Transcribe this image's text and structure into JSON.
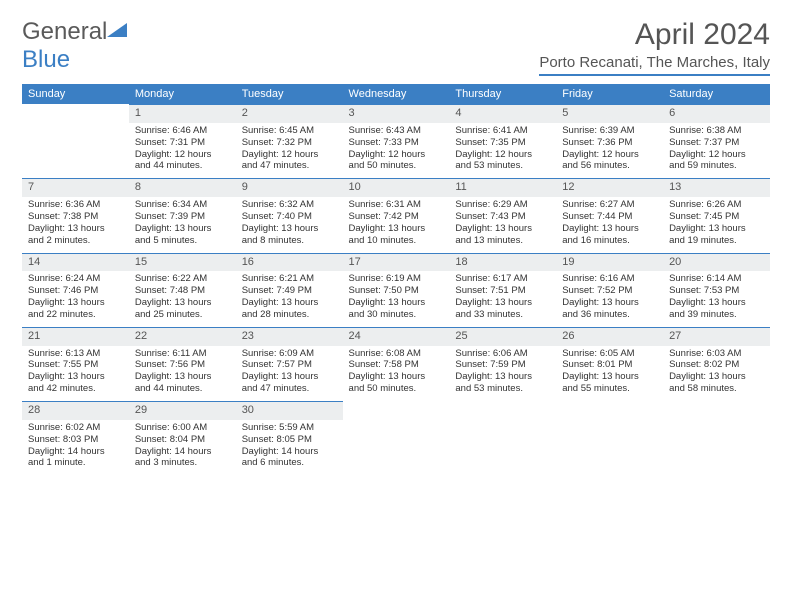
{
  "logo": {
    "word1": "General",
    "word2": "Blue"
  },
  "title": "April 2024",
  "location": "Porto Recanati, The Marches, Italy",
  "colors": {
    "accent": "#3b7fc4",
    "header_bg": "#3b7fc4",
    "header_fg": "#ffffff",
    "daynum_bg": "#eceeef",
    "text": "#333333",
    "title_text": "#555555",
    "background": "#ffffff"
  },
  "typography": {
    "month_title_size_pt": 22,
    "location_size_pt": 11,
    "dayheader_size_pt": 8,
    "cell_size_pt": 7
  },
  "layout": {
    "columns": 7,
    "rows": 5,
    "start_day_index": 1
  },
  "day_headers": [
    "Sunday",
    "Monday",
    "Tuesday",
    "Wednesday",
    "Thursday",
    "Friday",
    "Saturday"
  ],
  "days": [
    {
      "n": 1,
      "sunrise": "6:46 AM",
      "sunset": "7:31 PM",
      "daylight": "12 hours and 44 minutes."
    },
    {
      "n": 2,
      "sunrise": "6:45 AM",
      "sunset": "7:32 PM",
      "daylight": "12 hours and 47 minutes."
    },
    {
      "n": 3,
      "sunrise": "6:43 AM",
      "sunset": "7:33 PM",
      "daylight": "12 hours and 50 minutes."
    },
    {
      "n": 4,
      "sunrise": "6:41 AM",
      "sunset": "7:35 PM",
      "daylight": "12 hours and 53 minutes."
    },
    {
      "n": 5,
      "sunrise": "6:39 AM",
      "sunset": "7:36 PM",
      "daylight": "12 hours and 56 minutes."
    },
    {
      "n": 6,
      "sunrise": "6:38 AM",
      "sunset": "7:37 PM",
      "daylight": "12 hours and 59 minutes."
    },
    {
      "n": 7,
      "sunrise": "6:36 AM",
      "sunset": "7:38 PM",
      "daylight": "13 hours and 2 minutes."
    },
    {
      "n": 8,
      "sunrise": "6:34 AM",
      "sunset": "7:39 PM",
      "daylight": "13 hours and 5 minutes."
    },
    {
      "n": 9,
      "sunrise": "6:32 AM",
      "sunset": "7:40 PM",
      "daylight": "13 hours and 8 minutes."
    },
    {
      "n": 10,
      "sunrise": "6:31 AM",
      "sunset": "7:42 PM",
      "daylight": "13 hours and 10 minutes."
    },
    {
      "n": 11,
      "sunrise": "6:29 AM",
      "sunset": "7:43 PM",
      "daylight": "13 hours and 13 minutes."
    },
    {
      "n": 12,
      "sunrise": "6:27 AM",
      "sunset": "7:44 PM",
      "daylight": "13 hours and 16 minutes."
    },
    {
      "n": 13,
      "sunrise": "6:26 AM",
      "sunset": "7:45 PM",
      "daylight": "13 hours and 19 minutes."
    },
    {
      "n": 14,
      "sunrise": "6:24 AM",
      "sunset": "7:46 PM",
      "daylight": "13 hours and 22 minutes."
    },
    {
      "n": 15,
      "sunrise": "6:22 AM",
      "sunset": "7:48 PM",
      "daylight": "13 hours and 25 minutes."
    },
    {
      "n": 16,
      "sunrise": "6:21 AM",
      "sunset": "7:49 PM",
      "daylight": "13 hours and 28 minutes."
    },
    {
      "n": 17,
      "sunrise": "6:19 AM",
      "sunset": "7:50 PM",
      "daylight": "13 hours and 30 minutes."
    },
    {
      "n": 18,
      "sunrise": "6:17 AM",
      "sunset": "7:51 PM",
      "daylight": "13 hours and 33 minutes."
    },
    {
      "n": 19,
      "sunrise": "6:16 AM",
      "sunset": "7:52 PM",
      "daylight": "13 hours and 36 minutes."
    },
    {
      "n": 20,
      "sunrise": "6:14 AM",
      "sunset": "7:53 PM",
      "daylight": "13 hours and 39 minutes."
    },
    {
      "n": 21,
      "sunrise": "6:13 AM",
      "sunset": "7:55 PM",
      "daylight": "13 hours and 42 minutes."
    },
    {
      "n": 22,
      "sunrise": "6:11 AM",
      "sunset": "7:56 PM",
      "daylight": "13 hours and 44 minutes."
    },
    {
      "n": 23,
      "sunrise": "6:09 AM",
      "sunset": "7:57 PM",
      "daylight": "13 hours and 47 minutes."
    },
    {
      "n": 24,
      "sunrise": "6:08 AM",
      "sunset": "7:58 PM",
      "daylight": "13 hours and 50 minutes."
    },
    {
      "n": 25,
      "sunrise": "6:06 AM",
      "sunset": "7:59 PM",
      "daylight": "13 hours and 53 minutes."
    },
    {
      "n": 26,
      "sunrise": "6:05 AM",
      "sunset": "8:01 PM",
      "daylight": "13 hours and 55 minutes."
    },
    {
      "n": 27,
      "sunrise": "6:03 AM",
      "sunset": "8:02 PM",
      "daylight": "13 hours and 58 minutes."
    },
    {
      "n": 28,
      "sunrise": "6:02 AM",
      "sunset": "8:03 PM",
      "daylight": "14 hours and 1 minute."
    },
    {
      "n": 29,
      "sunrise": "6:00 AM",
      "sunset": "8:04 PM",
      "daylight": "14 hours and 3 minutes."
    },
    {
      "n": 30,
      "sunrise": "5:59 AM",
      "sunset": "8:05 PM",
      "daylight": "14 hours and 6 minutes."
    }
  ],
  "labels": {
    "sunrise": "Sunrise: ",
    "sunset": "Sunset: ",
    "daylight": "Daylight: "
  }
}
